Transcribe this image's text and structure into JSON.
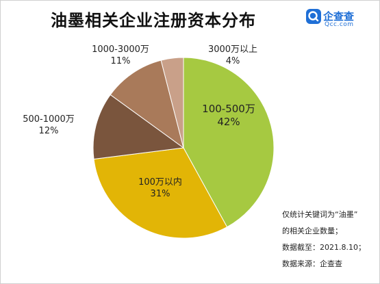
{
  "title": "油墨相关企业注册资本分布",
  "logo": {
    "name": "企查查",
    "sub": "Qcc.com"
  },
  "chart_data": {
    "type": "pie",
    "categories": [
      "100-500万",
      "100万以内",
      "500-1000万",
      "1000-3000万",
      "3000万以上"
    ],
    "values": [
      42,
      31,
      12,
      11,
      4
    ],
    "value_labels": [
      "42%",
      "31%",
      "12%",
      "11%",
      "4%"
    ],
    "colors": [
      "#a6c941",
      "#e2b506",
      "#7a553d",
      "#a97a5a",
      "#c9a089"
    ],
    "title": "油墨相关企业注册资本分布",
    "start_angle": 0,
    "direction": "clockwise"
  },
  "notes": [
    "仅统计关键词为“油墨”",
    "的相关企业数量；",
    "数据截至：2021.8.10；",
    "数据来源：企查查"
  ]
}
